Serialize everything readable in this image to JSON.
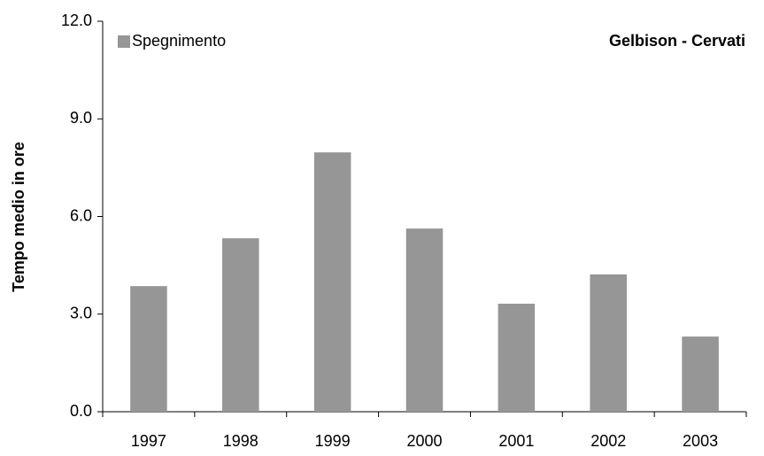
{
  "chart_data": {
    "type": "bar",
    "title": "Gelbison - Cervati",
    "y_label": "Tempo medio in ore",
    "categories": [
      "1997",
      "1998",
      "1999",
      "2000",
      "2001",
      "2002",
      "2003"
    ],
    "series": [
      {
        "name": "Spegnimento",
        "color": "#969696",
        "values": [
          3.86,
          5.33,
          7.97,
          5.63,
          3.32,
          4.22,
          2.31
        ]
      }
    ],
    "ylim": [
      0,
      12
    ],
    "yticks": [
      {
        "value": 0,
        "label": "0.0"
      },
      {
        "value": 3,
        "label": "3.0"
      },
      {
        "value": 6,
        "label": "6.0"
      },
      {
        "value": 9,
        "label": "9.0"
      },
      {
        "value": 12,
        "label": "12.0"
      }
    ],
    "grid": false,
    "legend": "top-left"
  }
}
